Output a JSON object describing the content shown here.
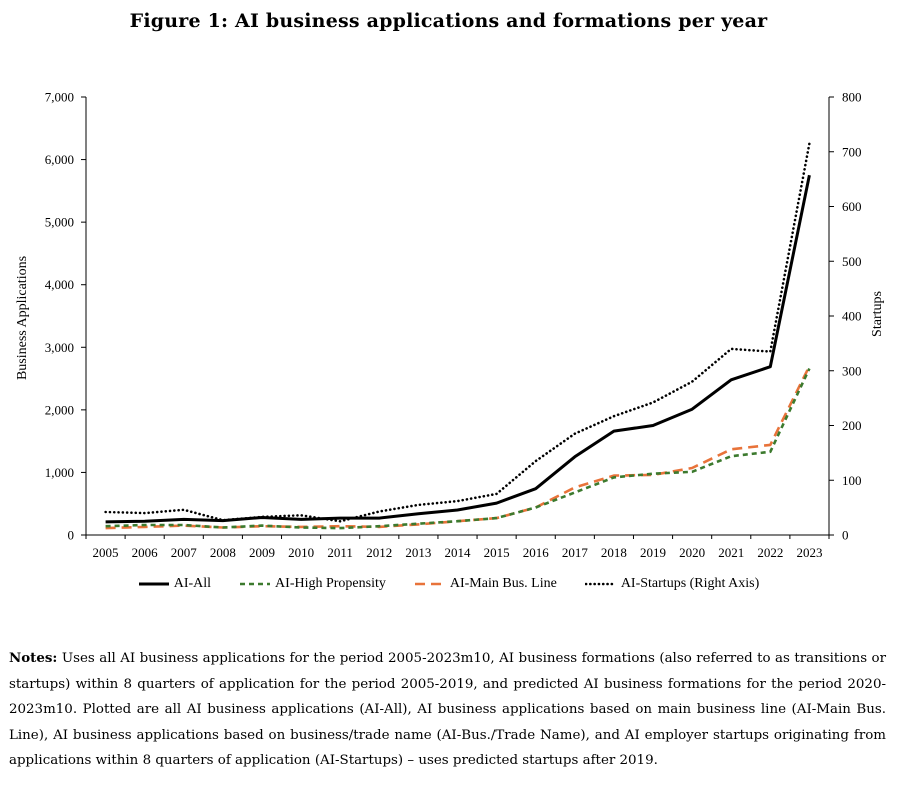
{
  "figure": {
    "title": "Figure 1:  AI business applications and formations per year"
  },
  "chart_data": {
    "type": "line",
    "title": "Figure 1:  AI business applications and formations per year",
    "xlabel": "",
    "ylabel": "Business Applications",
    "y2label": "Startups",
    "categories": [
      "2005",
      "2006",
      "2007",
      "2008",
      "2009",
      "2010",
      "2011",
      "2012",
      "2013",
      "2014",
      "2015",
      "2016",
      "2017",
      "2018",
      "2019",
      "2020",
      "2021",
      "2022",
      "2023"
    ],
    "ylim": [
      0,
      7000
    ],
    "y2lim": [
      0,
      800
    ],
    "yticks": [
      0,
      1000,
      2000,
      3000,
      4000,
      5000,
      6000,
      7000
    ],
    "ytick_labels": [
      "0",
      "1,000",
      "2,000",
      "3,000",
      "4,000",
      "5,000",
      "6,000",
      "7,000"
    ],
    "y2ticks": [
      0,
      100,
      200,
      300,
      400,
      500,
      600,
      700,
      800
    ],
    "y2tick_labels": [
      "0",
      "100",
      "200",
      "300",
      "400",
      "500",
      "600",
      "700",
      "800"
    ],
    "grid": false,
    "legend_position": "bottom",
    "series": [
      {
        "name": "AI-All",
        "axis": "left",
        "style": "solid",
        "color": "#000000",
        "values": [
          210,
          220,
          250,
          230,
          280,
          250,
          270,
          270,
          340,
          400,
          510,
          740,
          1250,
          1660,
          1750,
          2010,
          2480,
          2690,
          5750
        ]
      },
      {
        "name": "AI-High Propensity",
        "axis": "left",
        "style": "short-dash",
        "color": "#3c7a2e",
        "values": [
          140,
          160,
          160,
          120,
          150,
          120,
          110,
          140,
          180,
          220,
          270,
          440,
          680,
          920,
          980,
          1010,
          1260,
          1330,
          2660
        ]
      },
      {
        "name": "AI-Main Bus. Line",
        "axis": "left",
        "style": "long-dash",
        "color": "#e8733a",
        "values": [
          110,
          130,
          150,
          120,
          140,
          130,
          140,
          130,
          170,
          220,
          270,
          440,
          760,
          950,
          960,
          1070,
          1370,
          1440,
          2700
        ]
      },
      {
        "name": "AI-Startups (Right Axis)",
        "axis": "right",
        "style": "dotted",
        "color": "#000000",
        "values": [
          42,
          40,
          46,
          27,
          33,
          36,
          25,
          43,
          55,
          62,
          75,
          135,
          185,
          217,
          242,
          280,
          340,
          335,
          715
        ]
      }
    ]
  },
  "notes": {
    "label": "Notes:",
    "text": "Uses all AI business applications for the period 2005-2023m10, AI business formations (also referred to as transitions or startups) within 8 quarters of application for the period 2005-2019, and predicted AI business formations for the period 2020-2023m10. Plotted are all AI business applications (AI-All), AI business applications based on main business line (AI-Main Bus. Line), AI business applications based on business/trade name (AI-Bus./Trade Name), and AI employer startups originating from applications within 8 quarters of application (AI-Startups) – uses predicted startups after 2019."
  }
}
